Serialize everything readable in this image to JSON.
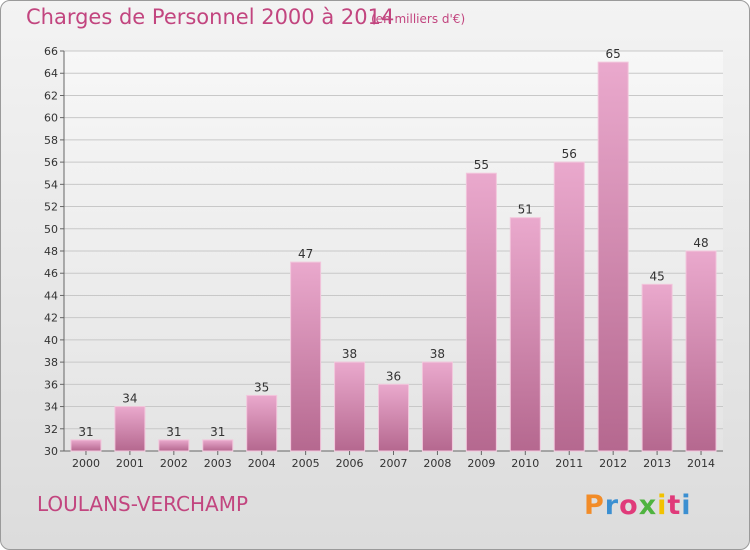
{
  "header": {
    "title": "Charges de Personnel 2000 à 2014",
    "subtitle": "(en milliers d'€)"
  },
  "footer": {
    "commune": "LOULANS-VERCHAMP",
    "brand": "Proxiti"
  },
  "colors": {
    "accent": "#c2457f",
    "bar_light": "#e8a6ca",
    "bar_dark": "#b86a96",
    "brand_letters": [
      "#f28c28",
      "#3b8fd1",
      "#e03a7a",
      "#4fb33f",
      "#f2c200",
      "#e03a7a",
      "#3b8fd1"
    ]
  },
  "chart_data": {
    "type": "bar",
    "title": "Charges de Personnel 2000 à 2014",
    "subtitle": "(en milliers d'€)",
    "categories": [
      "2000",
      "2001",
      "2002",
      "2003",
      "2004",
      "2005",
      "2006",
      "2007",
      "2008",
      "2009",
      "2010",
      "2011",
      "2012",
      "2013",
      "2014"
    ],
    "values": [
      31,
      34,
      31,
      31,
      35,
      47,
      38,
      36,
      38,
      55,
      51,
      56,
      65,
      45,
      48
    ],
    "ylim": [
      30,
      66
    ],
    "yticks": [
      30,
      32,
      34,
      36,
      38,
      40,
      42,
      44,
      46,
      48,
      50,
      52,
      54,
      56,
      58,
      60,
      62,
      64,
      66
    ],
    "grid": true,
    "data_labels": true
  }
}
